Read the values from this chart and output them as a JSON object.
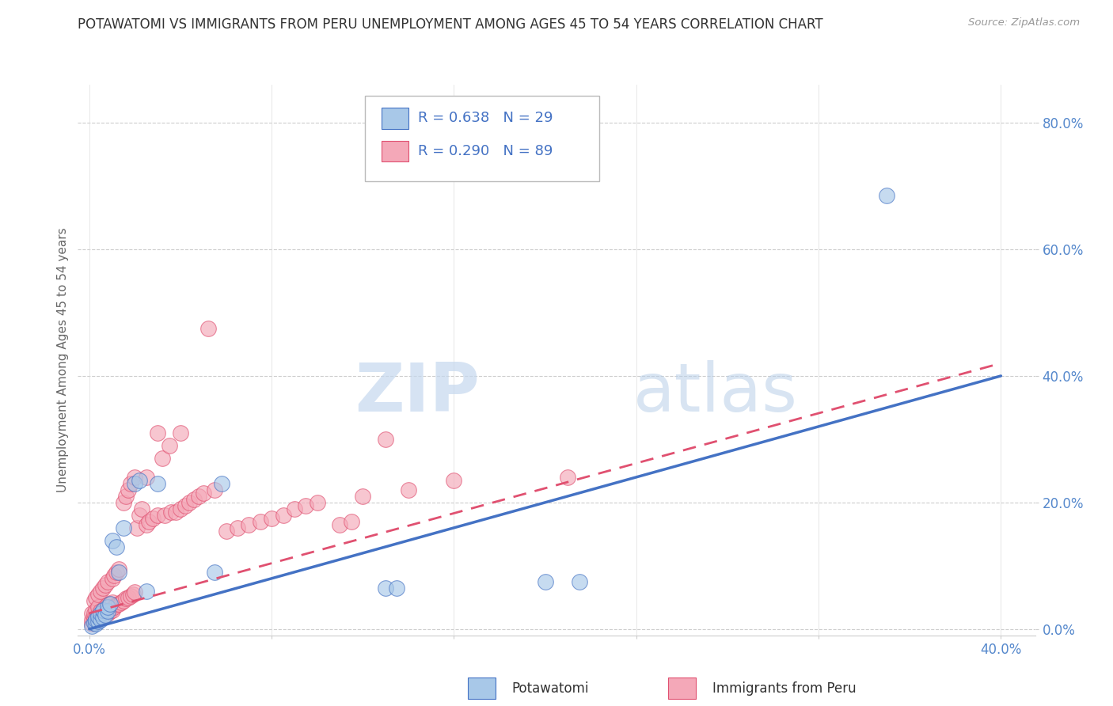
{
  "title": "POTAWATOMI VS IMMIGRANTS FROM PERU UNEMPLOYMENT AMONG AGES 45 TO 54 YEARS CORRELATION CHART",
  "source": "Source: ZipAtlas.com",
  "ylabel": "Unemployment Among Ages 45 to 54 years",
  "xlim": [
    -0.005,
    0.415
  ],
  "ylim": [
    -0.01,
    0.86
  ],
  "xticks": [
    0.0,
    0.08,
    0.16,
    0.24,
    0.32,
    0.4
  ],
  "yticks": [
    0.0,
    0.2,
    0.4,
    0.6,
    0.8
  ],
  "ytick_labels": [
    "0.0%",
    "20.0%",
    "40.0%",
    "60.0%",
    "80.0%"
  ],
  "xtick_labels_bottom": [
    "0.0%",
    "",
    "",
    "",
    "",
    "40.0%"
  ],
  "color_blue": "#a8c8e8",
  "color_pink": "#f4a8b8",
  "color_blue_dark": "#4472c4",
  "color_pink_dark": "#e05070",
  "color_title": "#333333",
  "color_source": "#999999",
  "color_axis_tick": "#5588cc",
  "watermark_zip": "ZIP",
  "watermark_atlas": "atlas",
  "legend_r1": "R = 0.638",
  "legend_n1": "N = 29",
  "legend_r2": "R = 0.290",
  "legend_n2": "N = 89",
  "potawatomi_x": [
    0.001,
    0.002,
    0.003,
    0.003,
    0.004,
    0.004,
    0.005,
    0.005,
    0.006,
    0.006,
    0.007,
    0.008,
    0.008,
    0.009,
    0.01,
    0.012,
    0.013,
    0.015,
    0.02,
    0.022,
    0.025,
    0.03,
    0.055,
    0.058,
    0.13,
    0.135,
    0.2,
    0.215,
    0.35
  ],
  "potawatomi_y": [
    0.005,
    0.01,
    0.008,
    0.015,
    0.012,
    0.02,
    0.015,
    0.025,
    0.018,
    0.03,
    0.022,
    0.028,
    0.035,
    0.04,
    0.14,
    0.13,
    0.09,
    0.16,
    0.23,
    0.235,
    0.06,
    0.23,
    0.09,
    0.23,
    0.065,
    0.065,
    0.075,
    0.075,
    0.685
  ],
  "peru_x": [
    0.001,
    0.001,
    0.001,
    0.002,
    0.002,
    0.002,
    0.002,
    0.003,
    0.003,
    0.003,
    0.003,
    0.004,
    0.004,
    0.004,
    0.004,
    0.005,
    0.005,
    0.005,
    0.006,
    0.006,
    0.006,
    0.007,
    0.007,
    0.007,
    0.008,
    0.008,
    0.008,
    0.009,
    0.009,
    0.01,
    0.01,
    0.01,
    0.011,
    0.011,
    0.012,
    0.012,
    0.013,
    0.013,
    0.014,
    0.015,
    0.015,
    0.016,
    0.016,
    0.017,
    0.017,
    0.018,
    0.018,
    0.019,
    0.02,
    0.02,
    0.021,
    0.022,
    0.023,
    0.025,
    0.025,
    0.026,
    0.028,
    0.03,
    0.03,
    0.032,
    0.033,
    0.035,
    0.036,
    0.038,
    0.04,
    0.04,
    0.042,
    0.044,
    0.046,
    0.048,
    0.05,
    0.052,
    0.055,
    0.06,
    0.065,
    0.07,
    0.075,
    0.08,
    0.085,
    0.09,
    0.095,
    0.1,
    0.11,
    0.115,
    0.12,
    0.13,
    0.14,
    0.16,
    0.21
  ],
  "peru_y": [
    0.008,
    0.015,
    0.025,
    0.01,
    0.018,
    0.025,
    0.045,
    0.012,
    0.02,
    0.03,
    0.05,
    0.015,
    0.022,
    0.035,
    0.055,
    0.018,
    0.028,
    0.06,
    0.02,
    0.03,
    0.065,
    0.025,
    0.035,
    0.07,
    0.025,
    0.038,
    0.075,
    0.028,
    0.04,
    0.03,
    0.042,
    0.08,
    0.035,
    0.085,
    0.038,
    0.09,
    0.04,
    0.095,
    0.042,
    0.045,
    0.2,
    0.048,
    0.21,
    0.05,
    0.22,
    0.052,
    0.23,
    0.055,
    0.058,
    0.24,
    0.16,
    0.18,
    0.19,
    0.165,
    0.24,
    0.17,
    0.175,
    0.18,
    0.31,
    0.27,
    0.18,
    0.29,
    0.185,
    0.185,
    0.19,
    0.31,
    0.195,
    0.2,
    0.205,
    0.21,
    0.215,
    0.475,
    0.22,
    0.155,
    0.16,
    0.165,
    0.17,
    0.175,
    0.18,
    0.19,
    0.195,
    0.2,
    0.165,
    0.17,
    0.21,
    0.3,
    0.22,
    0.235,
    0.24
  ],
  "blue_line_x": [
    0.0,
    0.4
  ],
  "blue_line_y": [
    0.0,
    0.4
  ],
  "pink_line_x": [
    0.0,
    0.4
  ],
  "pink_line_y": [
    0.025,
    0.42
  ]
}
